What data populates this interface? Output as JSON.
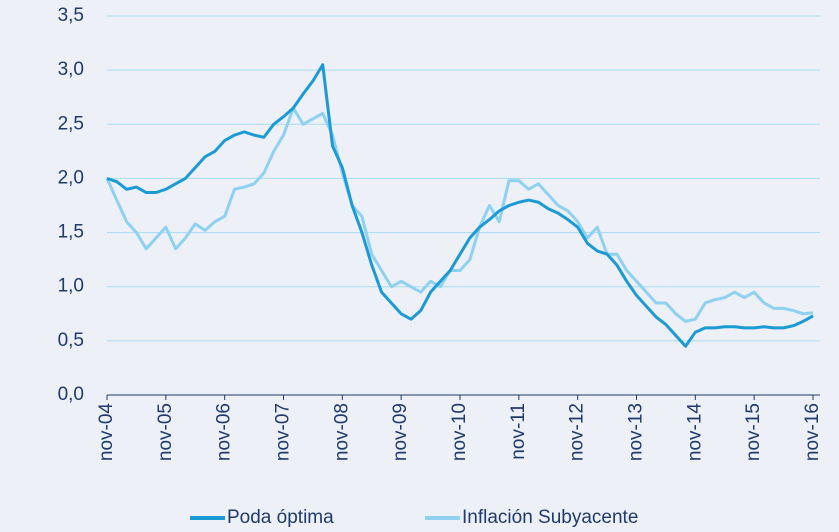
{
  "chart_data": {
    "type": "line",
    "categories": [
      "nov-04",
      null,
      null,
      null,
      null,
      null,
      "nov-05",
      null,
      null,
      null,
      null,
      null,
      "nov-06",
      null,
      null,
      null,
      null,
      null,
      "nov-07",
      null,
      null,
      null,
      null,
      null,
      "nov-08",
      null,
      null,
      null,
      null,
      null,
      "nov-09",
      null,
      null,
      null,
      null,
      null,
      "nov-10",
      null,
      null,
      null,
      null,
      null,
      "nov-11",
      null,
      null,
      null,
      null,
      null,
      "nov-12",
      null,
      null,
      null,
      null,
      null,
      "nov-13",
      null,
      null,
      null,
      null,
      null,
      "nov-14",
      null,
      null,
      null,
      null,
      null,
      "nov-15",
      null,
      null,
      null,
      null,
      null,
      "nov-16"
    ],
    "series": [
      {
        "name": "Poda óptima",
        "color": "#1b9ad6",
        "values": [
          2.0,
          1.97,
          1.9,
          1.92,
          1.87,
          1.87,
          1.9,
          1.95,
          2.0,
          2.1,
          2.2,
          2.25,
          2.35,
          2.4,
          2.43,
          2.4,
          2.38,
          2.5,
          2.57,
          2.65,
          2.78,
          2.9,
          3.05,
          2.3,
          2.1,
          1.75,
          1.5,
          1.2,
          0.95,
          0.85,
          0.75,
          0.7,
          0.78,
          0.95,
          1.05,
          1.15,
          1.3,
          1.45,
          1.55,
          1.62,
          1.7,
          1.75,
          1.78,
          1.8,
          1.78,
          1.72,
          1.68,
          1.62,
          1.55,
          1.4,
          1.33,
          1.3,
          1.2,
          1.05,
          0.92,
          0.82,
          0.72,
          0.65,
          0.55,
          0.45,
          0.58,
          0.62,
          0.62,
          0.63,
          0.63,
          0.62,
          0.62,
          0.63,
          0.62,
          0.62,
          0.64,
          0.68,
          0.73
        ]
      },
      {
        "name": "Inflación Subyacente",
        "color": "#8ed1f1",
        "values": [
          2.0,
          1.8,
          1.6,
          1.5,
          1.35,
          1.45,
          1.55,
          1.35,
          1.45,
          1.58,
          1.52,
          1.6,
          1.65,
          1.9,
          1.92,
          1.95,
          2.05,
          2.25,
          2.4,
          2.65,
          2.5,
          2.55,
          2.6,
          2.4,
          2.05,
          1.75,
          1.65,
          1.3,
          1.15,
          1.0,
          1.05,
          1.0,
          0.95,
          1.05,
          1.0,
          1.15,
          1.15,
          1.25,
          1.55,
          1.75,
          1.6,
          1.98,
          1.98,
          1.9,
          1.95,
          1.85,
          1.75,
          1.7,
          1.6,
          1.45,
          1.55,
          1.3,
          1.3,
          1.15,
          1.05,
          0.95,
          0.85,
          0.85,
          0.75,
          0.68,
          0.7,
          0.85,
          0.88,
          0.9,
          0.95,
          0.9,
          0.95,
          0.85,
          0.8,
          0.8,
          0.78,
          0.75,
          0.76
        ]
      }
    ],
    "ylim": [
      0,
      3.5
    ],
    "yticks": [
      {
        "value": 0,
        "label": "0,0"
      },
      {
        "value": 0.5,
        "label": "0,5"
      },
      {
        "value": 1,
        "label": "1,0"
      },
      {
        "value": 1.5,
        "label": "1,5"
      },
      {
        "value": 2,
        "label": "2,0"
      },
      {
        "value": 2.5,
        "label": "2,5"
      },
      {
        "value": 3,
        "label": "3,0"
      },
      {
        "value": 3.5,
        "label": "3,5"
      }
    ],
    "grid": true,
    "legend": "bottom"
  }
}
